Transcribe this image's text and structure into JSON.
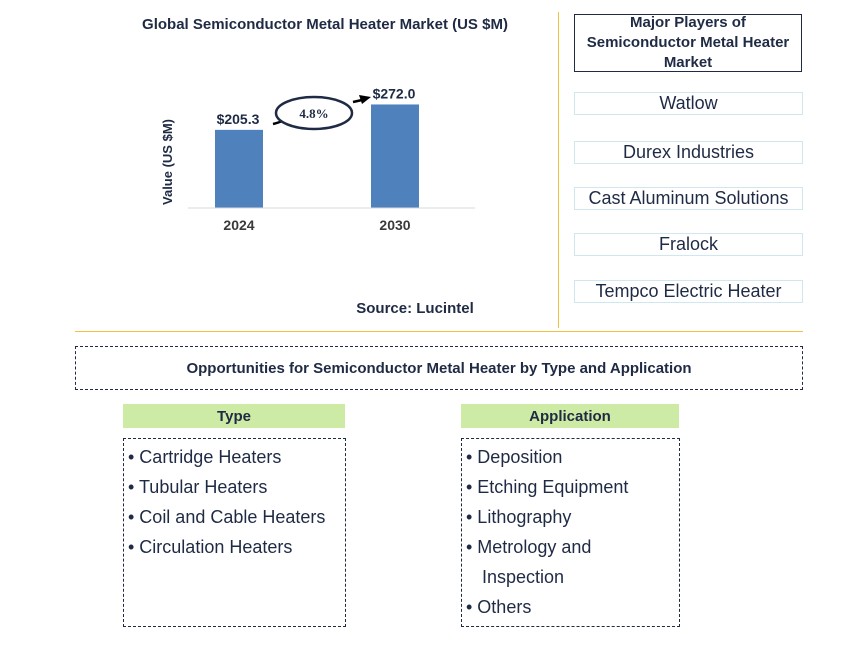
{
  "chart_data": {
    "type": "bar",
    "title": "Global Semiconductor Metal Heater Market (US $M)",
    "ylabel": "Value (US $M)",
    "categories": [
      "2024",
      "2030"
    ],
    "values": [
      205.3,
      272.0
    ],
    "data_labels": [
      "$205.3",
      "$272.0"
    ],
    "ylim": [
      0,
      310
    ],
    "cagr_label": "4.8%",
    "bar_color": "#4f81bd",
    "grid": false,
    "legend": "none"
  },
  "source": "Source: Lucintel",
  "players": {
    "header": "Major Players of Semiconductor Metal Heater Market",
    "items": [
      "Watlow",
      "Durex Industries",
      "Cast Aluminum Solutions",
      "Fralock",
      "Tempco Electric Heater"
    ]
  },
  "opportunities": {
    "title": "Opportunities for Semiconductor Metal Heater by Type and Application",
    "type": {
      "header": "Type",
      "items": [
        "• Cartridge Heaters",
        "• Tubular Heaters",
        "• Coil and Cable Heaters",
        "• Circulation Heaters"
      ]
    },
    "application": {
      "header": "Application",
      "items": [
        "• Deposition",
        "• Etching Equipment",
        "• Lithography",
        "• Metrology and",
        "Inspection",
        "• Others"
      ]
    }
  },
  "colors": {
    "text": "#1f2a44",
    "divider": "#f0c040",
    "header_fill": "#cdeba4",
    "player_border": "#cfe7ee"
  }
}
